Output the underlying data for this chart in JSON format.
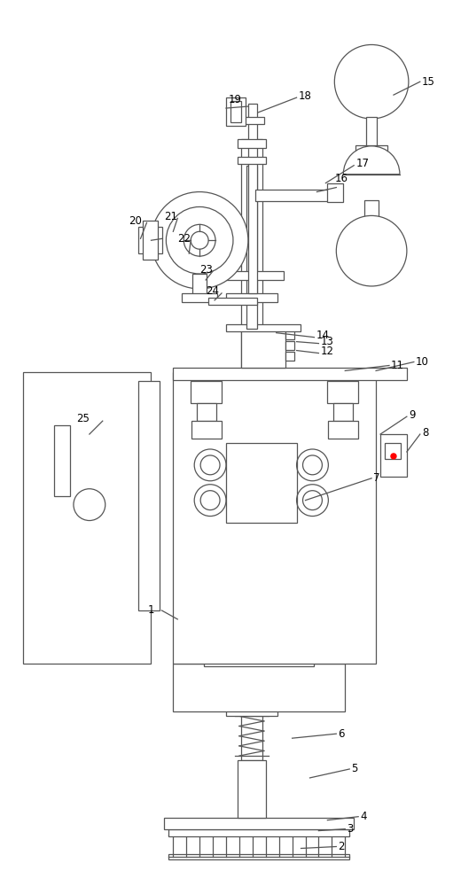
{
  "bg_color": "white",
  "line_color": "#555555",
  "lw": 0.9,
  "fs": 8.5
}
